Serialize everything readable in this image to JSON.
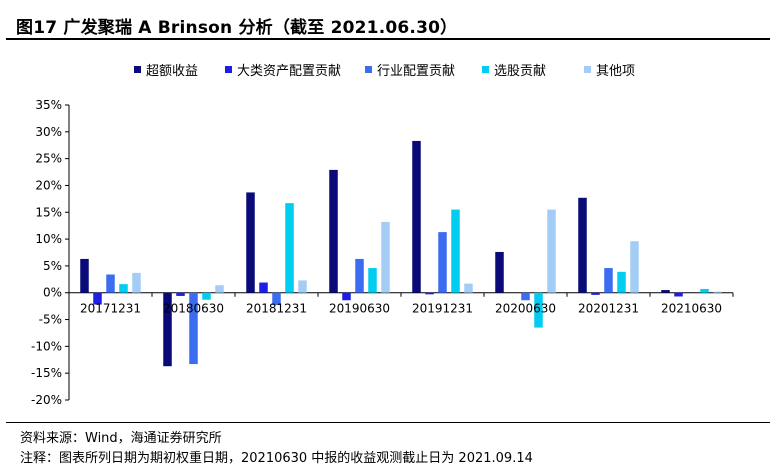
{
  "figure_title": "图17 广发聚瑞 A Brinson 分析（截至 2021.06.30）",
  "source_note": "资料来源：Wind，海通证券研究所",
  "footnote": "注释：图表所列日期为期初权重日期，20210630 中报的收益观测截止日为 2021.09.14",
  "chart_data": {
    "type": "bar",
    "title": "",
    "xlabel": "",
    "ylabel": "",
    "ylim": [
      -0.2,
      0.35
    ],
    "ytick_step": 0.05,
    "ytick_labels": [
      "35%",
      "30%",
      "25%",
      "20%",
      "15%",
      "10%",
      "5%",
      "0%",
      "-5%",
      "-10%",
      "-15%",
      "-20%"
    ],
    "grid": false,
    "legend_position": "top",
    "categories": [
      "20171231",
      "20180630",
      "20181231",
      "20190630",
      "20191231",
      "20200630",
      "20201231",
      "20210630"
    ],
    "series": [
      {
        "name": "超额收益",
        "color": "#0a0a78",
        "values": [
          0.063,
          -0.137,
          0.187,
          0.229,
          0.283,
          0.076,
          0.177,
          0.005
        ]
      },
      {
        "name": "大类资产配置贡献",
        "color": "#1e1ee6",
        "values": [
          -0.022,
          -0.006,
          0.019,
          -0.014,
          -0.003,
          0.0,
          -0.004,
          -0.007
        ]
      },
      {
        "name": "行业配置贡献",
        "color": "#3c6cf0",
        "values": [
          0.034,
          -0.133,
          -0.023,
          0.063,
          0.113,
          -0.014,
          0.046,
          0.0
        ]
      },
      {
        "name": "选股贡献",
        "color": "#00cdf0",
        "values": [
          0.016,
          -0.013,
          0.167,
          0.046,
          0.155,
          -0.065,
          0.039,
          0.007
        ]
      },
      {
        "name": "其他项",
        "color": "#a3cdf5",
        "values": [
          0.037,
          0.014,
          0.023,
          0.132,
          0.017,
          0.155,
          0.096,
          0.002
        ]
      }
    ]
  }
}
